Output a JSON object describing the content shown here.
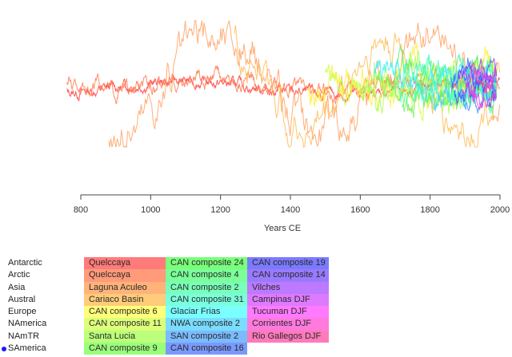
{
  "chart_data": {
    "type": "line",
    "title": "",
    "xlabel": "Years CE",
    "ylabel": "",
    "xlim": [
      760,
      2000
    ],
    "ylim": [
      -3,
      3
    ],
    "x_ticks": [
      800,
      1000,
      1200,
      1400,
      1600,
      1800,
      2000
    ],
    "grid": false,
    "legend_placement": "bottom",
    "series": [
      {
        "name": "Quelccaya",
        "color": "#ff4040",
        "start": 760,
        "end": 2000,
        "profile": "flat-low",
        "amp": 0.5
      },
      {
        "name": "Quelccaya",
        "color": "#ff7a50",
        "start": 760,
        "end": 2000,
        "profile": "flat",
        "amp": 0.7
      },
      {
        "name": "Laguna Aculeo",
        "color": "#ffa060",
        "start": 880,
        "end": 2000,
        "profile": "swing",
        "amp": 2.2
      },
      {
        "name": "Cariaco Basin",
        "color": "#ffbb55",
        "start": 1240,
        "end": 2000,
        "profile": "swing2",
        "amp": 2.0
      },
      {
        "name": "CAN composite 6",
        "color": "#ffee44",
        "start": 1450,
        "end": 1990,
        "profile": "mid",
        "amp": 1.4
      },
      {
        "name": "CAN composite 11",
        "color": "#ccff44",
        "start": 1500,
        "end": 1990,
        "profile": "mid",
        "amp": 1.2
      },
      {
        "name": "Santa Lucia",
        "color": "#aaff55",
        "start": 1600,
        "end": 1990,
        "profile": "mid",
        "amp": 1.3
      },
      {
        "name": "CAN composite 9",
        "color": "#77ee55",
        "start": 1640,
        "end": 1990,
        "profile": "mid",
        "amp": 1.2
      },
      {
        "name": "CAN composite 24",
        "color": "#55ee66",
        "start": 1700,
        "end": 1990,
        "profile": "mid",
        "amp": 1.3
      },
      {
        "name": "CAN composite 4",
        "color": "#55ff88",
        "start": 1720,
        "end": 1990,
        "profile": "mid",
        "amp": 1.2
      },
      {
        "name": "CAN composite 2",
        "color": "#44ffaa",
        "start": 1750,
        "end": 1990,
        "profile": "mid",
        "amp": 1.1
      },
      {
        "name": "CAN composite 31",
        "color": "#44ffdd",
        "start": 1700,
        "end": 1990,
        "profile": "mid",
        "amp": 1.2
      },
      {
        "name": "Glaciar Frias",
        "color": "#44eeff",
        "start": 1640,
        "end": 1990,
        "profile": "mid",
        "amp": 1.1
      },
      {
        "name": "NWA composite 2",
        "color": "#44ccff",
        "start": 1800,
        "end": 1990,
        "profile": "mid",
        "amp": 1.0
      },
      {
        "name": "SAN composite 2",
        "color": "#4499ff",
        "start": 1860,
        "end": 1990,
        "profile": "mid",
        "amp": 1.0
      },
      {
        "name": "CAN composite 16",
        "color": "#4466ff",
        "start": 1860,
        "end": 1990,
        "profile": "mid",
        "amp": 1.0
      },
      {
        "name": "CAN composite 19",
        "color": "#4444ff",
        "start": 1870,
        "end": 1990,
        "profile": "mid",
        "amp": 1.0
      },
      {
        "name": "CAN composite 14",
        "color": "#6644ff",
        "start": 1880,
        "end": 1990,
        "profile": "mid",
        "amp": 0.9
      },
      {
        "name": "Vilches",
        "color": "#9944ff",
        "start": 1880,
        "end": 1990,
        "profile": "mid",
        "amp": 0.9
      },
      {
        "name": "Campinas DJF",
        "color": "#cc44ff",
        "start": 1900,
        "end": 1990,
        "profile": "mid",
        "amp": 0.8
      },
      {
        "name": "Tucuman DJF",
        "color": "#ee44ee",
        "start": 1900,
        "end": 1990,
        "profile": "mid",
        "amp": 0.8
      },
      {
        "name": "Corrientes DJF",
        "color": "#ff44cc",
        "start": 1910,
        "end": 1990,
        "profile": "mid",
        "amp": 0.8
      },
      {
        "name": "Rio Gallegos DJF",
        "color": "#ff44aa",
        "start": 1920,
        "end": 1990,
        "profile": "mid",
        "amp": 0.7
      }
    ]
  },
  "regions": [
    {
      "label": "Antarctic",
      "selected": false
    },
    {
      "label": "Arctic",
      "selected": false
    },
    {
      "label": "Asia",
      "selected": false
    },
    {
      "label": "Austral",
      "selected": false
    },
    {
      "label": "Europe",
      "selected": false
    },
    {
      "label": "NAmerica",
      "selected": false
    },
    {
      "label": "NAmTR",
      "selected": false
    },
    {
      "label": "SAmerica",
      "selected": true
    }
  ],
  "legend": {
    "columns": [
      [
        {
          "label": "Quelccaya",
          "color": "#ff7a7a"
        },
        {
          "label": "Quelccaya",
          "color": "#ff9a7a"
        },
        {
          "label": "Laguna Aculeo",
          "color": "#ffb37a"
        },
        {
          "label": "Cariaco Basin",
          "color": "#ffcc7a"
        },
        {
          "label": "CAN composite 6",
          "color": "#ffff7a"
        },
        {
          "label": "CAN composite 11",
          "color": "#ddff7a"
        },
        {
          "label": "Santa Lucia",
          "color": "#bbff7a"
        },
        {
          "label": "CAN composite 9",
          "color": "#99ff7a"
        }
      ],
      [
        {
          "label": "CAN composite 24",
          "color": "#7aff7a"
        },
        {
          "label": "CAN composite 4",
          "color": "#7aff99"
        },
        {
          "label": "CAN composite 2",
          "color": "#7affbb"
        },
        {
          "label": "CAN composite 31",
          "color": "#7affdd"
        },
        {
          "label": "Glaciar Frias",
          "color": "#7affff"
        },
        {
          "label": "NWA composite 2",
          "color": "#7addff"
        },
        {
          "label": "SAN composite 2",
          "color": "#7abbff"
        },
        {
          "label": "CAN composite 16",
          "color": "#7a99ff"
        }
      ],
      [
        {
          "label": "CAN composite 19",
          "color": "#7a7aff"
        },
        {
          "label": "CAN composite 14",
          "color": "#997aff"
        },
        {
          "label": "Vilches",
          "color": "#bb7aff"
        },
        {
          "label": "Campinas DJF",
          "color": "#dd7aff"
        },
        {
          "label": "Tucuman DJF",
          "color": "#ff7aff"
        },
        {
          "label": "Corrientes DJF",
          "color": "#ff7add"
        },
        {
          "label": "Rio Gallegos DJF",
          "color": "#ff7abb"
        }
      ]
    ]
  }
}
